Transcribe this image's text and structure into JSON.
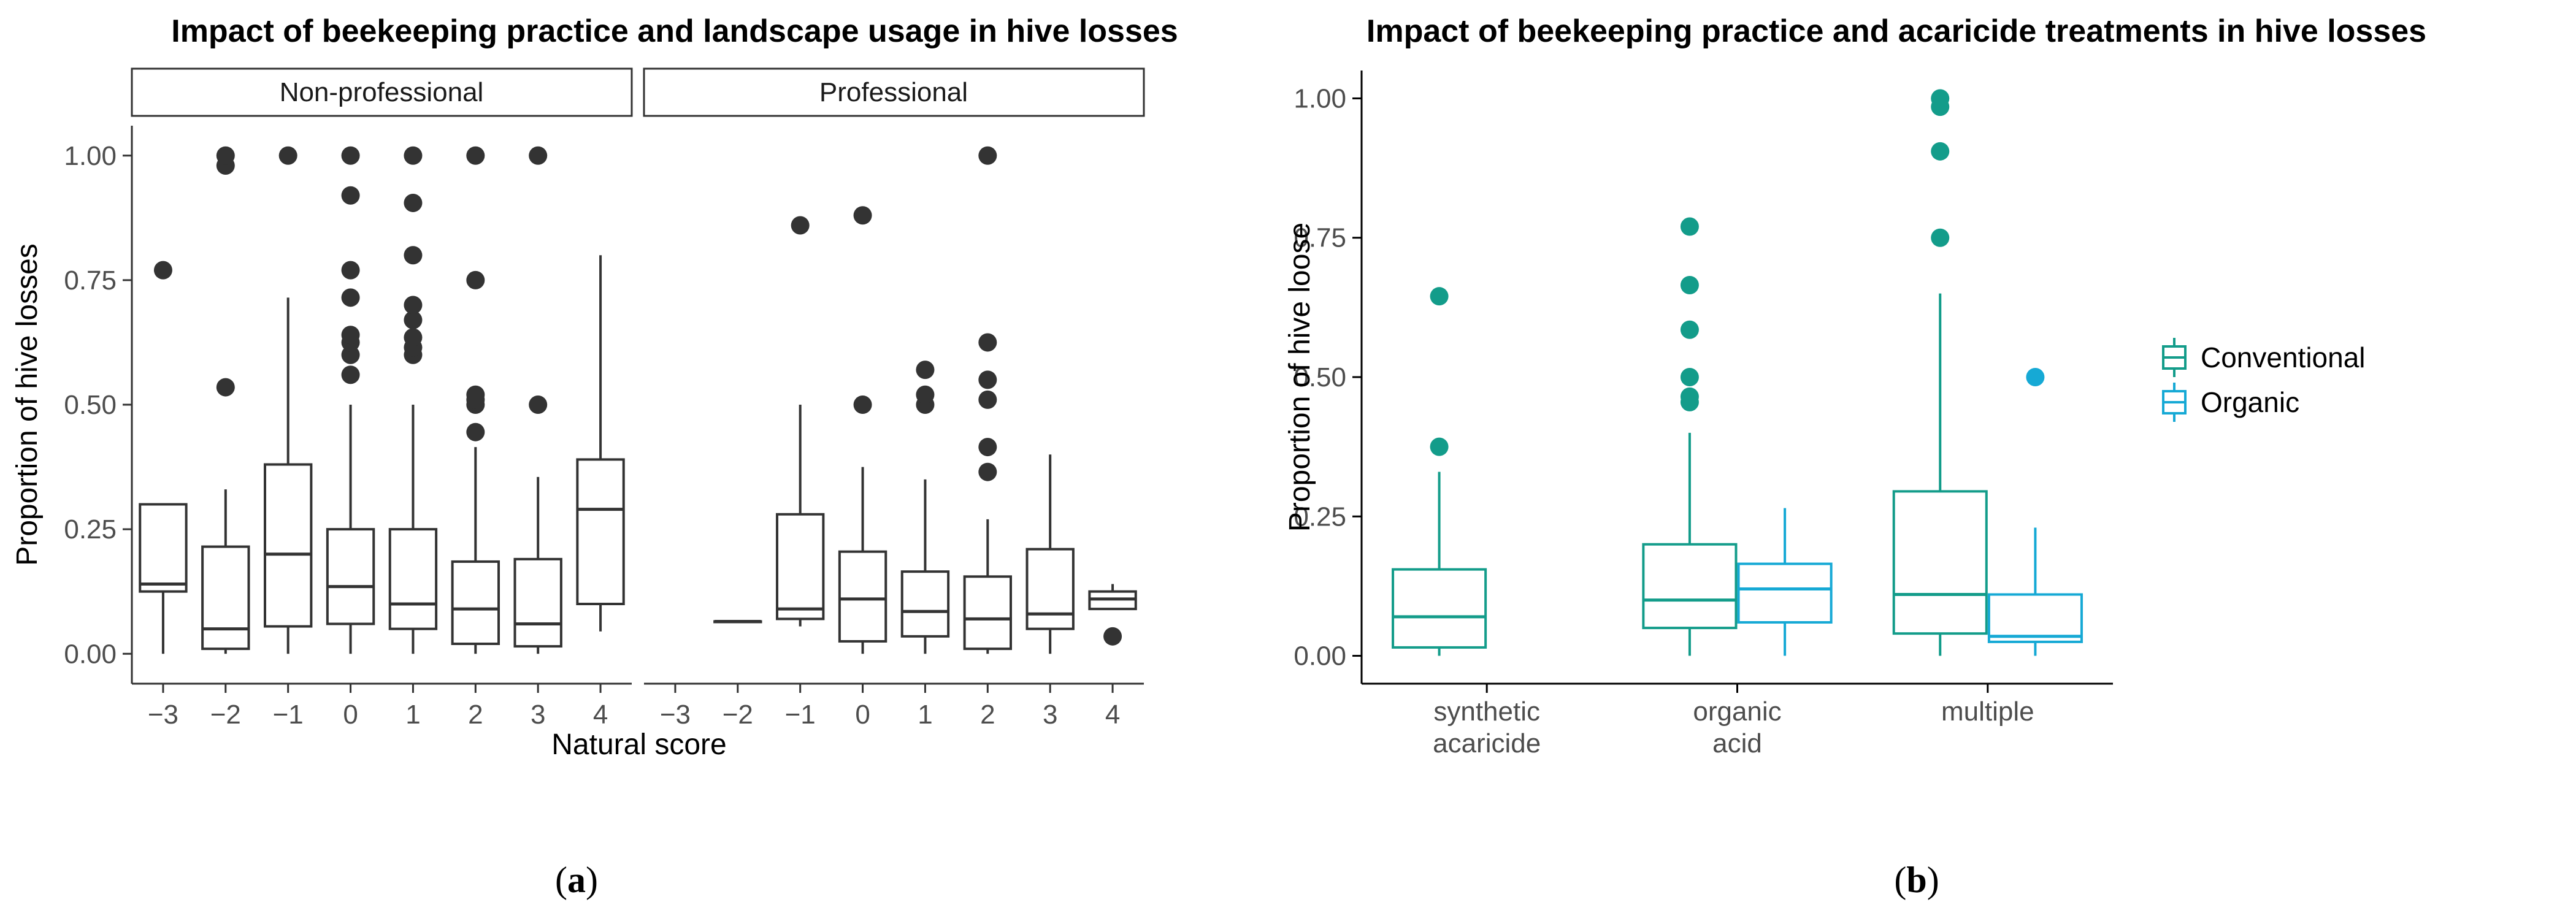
{
  "chart_data": [
    {
      "type": "boxplot",
      "title": "Impact of beekeeping practice and landscape usage in hive losses",
      "xlabel": "Natural score",
      "ylabel": "Proportion of hive losses",
      "ylim": [
        -0.06,
        1.06
      ],
      "yticks": [
        "0.00",
        "0.25",
        "0.50",
        "0.75",
        "1.00"
      ],
      "ytick_values": [
        0,
        0.25,
        0.5,
        0.75,
        1.0
      ],
      "categories": [
        "−3",
        "−2",
        "−1",
        "0",
        "1",
        "2",
        "3",
        "4"
      ],
      "facets": [
        {
          "label": "Non-professional",
          "boxes": [
            {
              "x": "−3",
              "min": 0.0,
              "q1": 0.125,
              "median": 0.14,
              "q3": 0.3,
              "max": 0.3,
              "outliers": [
                0.77
              ]
            },
            {
              "x": "−2",
              "min": 0.0,
              "q1": 0.01,
              "median": 0.05,
              "q3": 0.215,
              "max": 0.33,
              "outliers": [
                0.535,
                0.98,
                1.0
              ]
            },
            {
              "x": "−1",
              "min": 0.0,
              "q1": 0.055,
              "median": 0.2,
              "q3": 0.38,
              "max": 0.715,
              "outliers": [
                1.0
              ]
            },
            {
              "x": "0",
              "min": 0.0,
              "q1": 0.06,
              "median": 0.135,
              "q3": 0.25,
              "max": 0.5,
              "outliers": [
                0.56,
                0.6,
                0.625,
                0.64,
                0.715,
                0.77,
                0.92,
                1.0
              ]
            },
            {
              "x": "1",
              "min": 0.0,
              "q1": 0.05,
              "median": 0.1,
              "q3": 0.25,
              "max": 0.5,
              "outliers": [
                0.6,
                0.615,
                0.635,
                0.67,
                0.7,
                0.8,
                0.905,
                1.0
              ]
            },
            {
              "x": "2",
              "min": 0.0,
              "q1": 0.02,
              "median": 0.09,
              "q3": 0.185,
              "max": 0.415,
              "outliers": [
                0.445,
                0.5,
                0.51,
                0.52,
                0.75,
                1.0
              ]
            },
            {
              "x": "3",
              "min": 0.0,
              "q1": 0.015,
              "median": 0.06,
              "q3": 0.19,
              "max": 0.355,
              "outliers": [
                0.5,
                1.0
              ]
            },
            {
              "x": "4",
              "min": 0.045,
              "q1": 0.1,
              "median": 0.29,
              "q3": 0.39,
              "max": 0.8,
              "outliers": []
            }
          ]
        },
        {
          "label": "Professional",
          "boxes": [
            {
              "x": "−2",
              "min": 0.065,
              "q1": 0.065,
              "median": 0.065,
              "q3": 0.065,
              "max": 0.065,
              "outliers": []
            },
            {
              "x": "−1",
              "min": 0.055,
              "q1": 0.07,
              "median": 0.09,
              "q3": 0.28,
              "max": 0.5,
              "outliers": [
                0.86
              ]
            },
            {
              "x": "0",
              "min": 0.0,
              "q1": 0.025,
              "median": 0.11,
              "q3": 0.205,
              "max": 0.375,
              "outliers": [
                0.5,
                0.88
              ]
            },
            {
              "x": "1",
              "min": 0.0,
              "q1": 0.035,
              "median": 0.085,
              "q3": 0.165,
              "max": 0.35,
              "outliers": [
                0.5,
                0.52,
                0.57
              ]
            },
            {
              "x": "2",
              "min": 0.0,
              "q1": 0.01,
              "median": 0.07,
              "q3": 0.155,
              "max": 0.27,
              "outliers": [
                0.365,
                0.415,
                0.51,
                0.55,
                0.625,
                1.0
              ]
            },
            {
              "x": "3",
              "min": 0.0,
              "q1": 0.05,
              "median": 0.08,
              "q3": 0.21,
              "max": 0.4,
              "outliers": []
            },
            {
              "x": "4",
              "min": 0.09,
              "q1": 0.09,
              "median": 0.11,
              "q3": 0.125,
              "max": 0.14,
              "outliers": [
                0.035
              ]
            }
          ]
        }
      ]
    },
    {
      "type": "boxplot",
      "title": "Impact of beekeeping practice and acaricide treatments in hive losses",
      "xlabel": "",
      "ylabel": "Proportion of hive loose",
      "ylim": [
        -0.05,
        1.05
      ],
      "yticks": [
        "0.00",
        "0.25",
        "0.50",
        "0.75",
        "1.00"
      ],
      "ytick_values": [
        0,
        0.25,
        0.5,
        0.75,
        1.0
      ],
      "categories": [
        [
          "synthetic",
          "acaricide"
        ],
        [
          "organic",
          "acid"
        ],
        [
          "multiple"
        ]
      ],
      "legend": {
        "position": "right",
        "items": [
          "Conventional",
          "Organic"
        ],
        "colors": [
          "#139c8a",
          "#16a9d5"
        ]
      },
      "series": [
        {
          "name": "Conventional",
          "color": "#139c8a",
          "boxes": [
            {
              "x": "synthetic acaricide",
              "min": 0.0,
              "q1": 0.015,
              "median": 0.07,
              "q3": 0.155,
              "max": 0.33,
              "outliers": [
                0.375,
                0.645
              ]
            },
            {
              "x": "organic acid",
              "min": 0.0,
              "q1": 0.05,
              "median": 0.1,
              "q3": 0.2,
              "max": 0.4,
              "outliers": [
                0.455,
                0.465,
                0.5,
                0.585,
                0.665,
                0.77
              ]
            },
            {
              "x": "multiple",
              "min": 0.0,
              "q1": 0.04,
              "median": 0.11,
              "q3": 0.295,
              "max": 0.65,
              "outliers": [
                0.75,
                0.905,
                0.985,
                1.0
              ]
            }
          ]
        },
        {
          "name": "Organic",
          "color": "#16a9d5",
          "boxes": [
            {
              "x": "organic acid",
              "min": 0.0,
              "q1": 0.06,
              "median": 0.12,
              "q3": 0.165,
              "max": 0.265,
              "outliers": []
            },
            {
              "x": "multiple",
              "min": 0.0,
              "q1": 0.025,
              "median": 0.035,
              "q3": 0.11,
              "max": 0.23,
              "outliers": [
                0.5
              ]
            }
          ]
        }
      ]
    }
  ],
  "captions": {
    "a": "(a)",
    "b": "(b)"
  },
  "caption_parts": {
    "a_letter": "a",
    "b_letter": "b",
    "open": "(",
    "close": ")"
  },
  "colors": {
    "ink": "#333333",
    "conventional": "#139c8a",
    "organic": "#16a9d5"
  }
}
